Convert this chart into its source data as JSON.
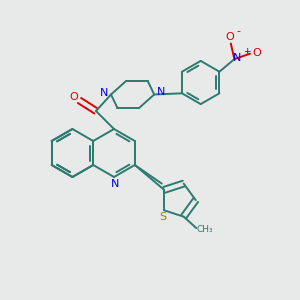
{
  "background_color": "#e8eaea",
  "bond_color": "#2d7a6e",
  "nitrogen_color": "#0000ee",
  "oxygen_color": "#dd0000",
  "sulfur_color": "#888800",
  "figsize": [
    3.0,
    3.0
  ],
  "dpi": 100,
  "xlim": [
    0,
    10
  ],
  "ylim": [
    0,
    10
  ]
}
